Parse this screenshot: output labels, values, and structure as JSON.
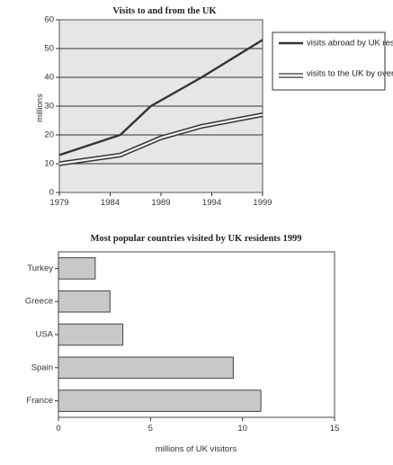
{
  "chart_data": [
    {
      "type": "line",
      "title": "Visits to and from the UK",
      "ylabel": "millions",
      "xlabel": "",
      "xlim": [
        1979,
        1999
      ],
      "ylim": [
        0,
        60
      ],
      "x_ticks": [
        "1979",
        "1984",
        "1989",
        "1994",
        "1999"
      ],
      "y_ticks": [
        "0",
        "10",
        "20",
        "30",
        "40",
        "50",
        "60"
      ],
      "grid": "horizontal",
      "legend_position": "right",
      "colors": {
        "background": "#e6e6e6",
        "line": "#333333"
      },
      "series": [
        {
          "name": "visits abroad by UK residents",
          "style": "thick-solid",
          "points": [
            [
              1979,
              13
            ],
            [
              1985,
              20
            ],
            [
              1988,
              30
            ],
            [
              1993,
              40
            ],
            [
              1999,
              53
            ]
          ]
        },
        {
          "name": "visits to the UK by overseas residents",
          "style": "double-line",
          "points": [
            [
              1979,
              10
            ],
            [
              1985,
              13
            ],
            [
              1989,
              19
            ],
            [
              1993,
              23
            ],
            [
              1999,
              27
            ]
          ]
        }
      ]
    },
    {
      "type": "bar",
      "orientation": "horizontal",
      "title": "Most popular countries visited by UK residents 1999",
      "xlabel": "millions of UK visitors",
      "ylabel": "",
      "xlim": [
        0,
        15
      ],
      "x_ticks": [
        "0",
        "5",
        "10",
        "15"
      ],
      "categories": [
        "Turkey",
        "Greece",
        "USA",
        "Spain",
        "France"
      ],
      "values": [
        2,
        2.8,
        3.5,
        9.5,
        11
      ],
      "colors": {
        "bar": "#c8c8c8",
        "edge": "#444444"
      }
    }
  ]
}
